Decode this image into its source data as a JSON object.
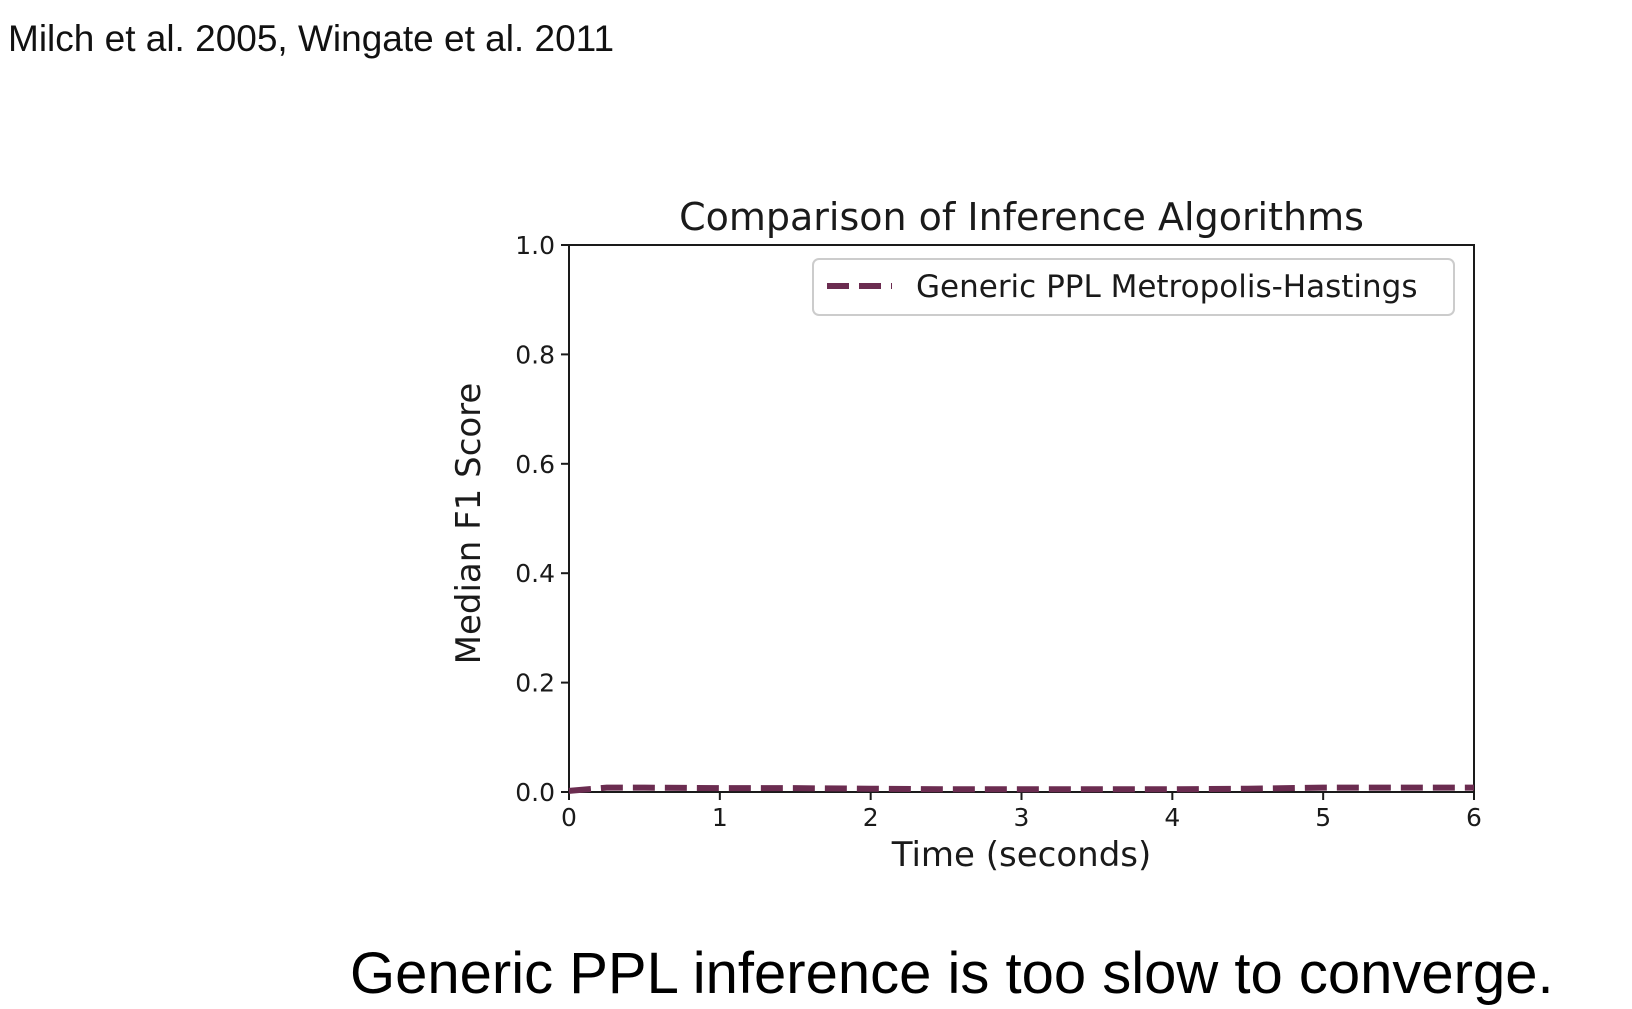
{
  "citation": "Milch et al. 2005, Wingate et al. 2011",
  "caption": "Generic PPL inference is too slow to converge.",
  "colors": {
    "series": "#6b2c50",
    "axis": "#1a1a1a",
    "legend_border": "#cccccc"
  },
  "chart_data": {
    "type": "line",
    "title": "Comparison of Inference Algorithms",
    "xlabel": "Time (seconds)",
    "ylabel": "Median F1 Score",
    "xlim": [
      0,
      6
    ],
    "ylim": [
      0.0,
      1.0
    ],
    "xticks": [
      "0",
      "1",
      "2",
      "3",
      "4",
      "5",
      "6"
    ],
    "yticks": [
      "0.0",
      "0.2",
      "0.4",
      "0.6",
      "0.8",
      "1.0"
    ],
    "grid": false,
    "legend_position": "top-right",
    "series": [
      {
        "name": "Generic PPL Metropolis-Hastings",
        "style": "dashed",
        "x": [
          0,
          0.25,
          0.5,
          1,
          1.5,
          2,
          2.5,
          3,
          3.5,
          4,
          4.5,
          5,
          5.5,
          6
        ],
        "y": [
          0.002,
          0.008,
          0.008,
          0.007,
          0.007,
          0.006,
          0.005,
          0.005,
          0.005,
          0.005,
          0.006,
          0.008,
          0.008,
          0.008
        ]
      }
    ]
  }
}
